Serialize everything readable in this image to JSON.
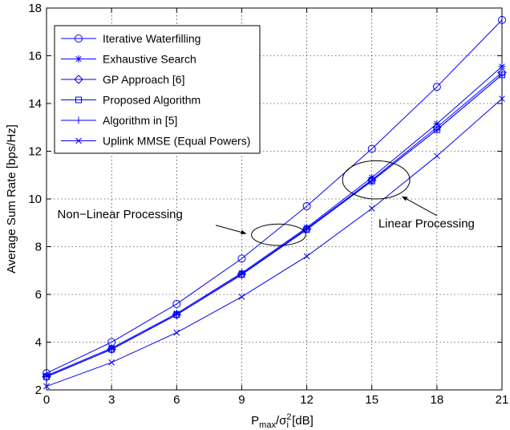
{
  "chart_data": {
    "type": "line",
    "xlabel_main": "P",
    "xlabel_sub1": "max",
    "xlabel_mid": "/σ",
    "xlabel_sub2": "i",
    "xlabel_sup": "2",
    "xlabel_unit": " [dB]",
    "ylabel": "Average Sum Rate [bps/Hz]",
    "xlim": [
      0,
      21
    ],
    "ylim": [
      2,
      18
    ],
    "xticks": [
      0,
      3,
      6,
      9,
      12,
      15,
      18,
      21
    ],
    "yticks": [
      2,
      4,
      6,
      8,
      10,
      12,
      14,
      16,
      18
    ],
    "grid": true,
    "legend_position": "top-left",
    "line_color": "#0000ff",
    "x": [
      0,
      3,
      6,
      9,
      12,
      15,
      18,
      21
    ],
    "series": [
      {
        "name": "Iterative Waterfilling",
        "marker": "circle",
        "values": [
          2.7,
          4.0,
          5.6,
          7.5,
          9.7,
          12.1,
          14.7,
          17.5
        ]
      },
      {
        "name": "Exhaustive Search",
        "marker": "asterisk",
        "values": [
          2.6,
          3.75,
          5.2,
          6.9,
          8.8,
          10.9,
          13.15,
          15.55
        ]
      },
      {
        "name": "GP Approach [6]",
        "marker": "diamond",
        "values": [
          2.55,
          3.7,
          5.15,
          6.85,
          8.75,
          10.8,
          13.0,
          15.3
        ]
      },
      {
        "name": "Proposed Algorithm",
        "marker": "square",
        "values": [
          2.55,
          3.7,
          5.15,
          6.83,
          8.72,
          10.75,
          12.9,
          15.2
        ]
      },
      {
        "name": "Algorithm in [5]",
        "marker": "plus",
        "values": [
          2.55,
          3.7,
          5.15,
          6.83,
          8.72,
          10.75,
          12.9,
          15.2
        ]
      },
      {
        "name": "Uplink MMSE (Equal Powers)",
        "marker": "x",
        "values": [
          2.15,
          3.15,
          4.4,
          5.9,
          7.6,
          9.6,
          11.8,
          14.2
        ]
      }
    ],
    "annotations": [
      {
        "text": "Non−Linear Processing",
        "ellipse_center": [
          10.7,
          8.5
        ],
        "ellipse_radius": [
          1.25,
          0.45
        ],
        "arrow_from": [
          7.8,
          8.9
        ],
        "arrow_to": [
          9.2,
          8.55
        ],
        "text_anchor": [
          0.5,
          9.2
        ]
      },
      {
        "text": "Linear Processing",
        "ellipse_center": [
          15.2,
          10.8
        ],
        "ellipse_radius": [
          1.55,
          0.8
        ],
        "arrow_from": [
          18.0,
          9.3
        ],
        "arrow_to": [
          16.4,
          10.1
        ],
        "text_anchor": [
          15.3,
          8.8
        ]
      }
    ]
  }
}
